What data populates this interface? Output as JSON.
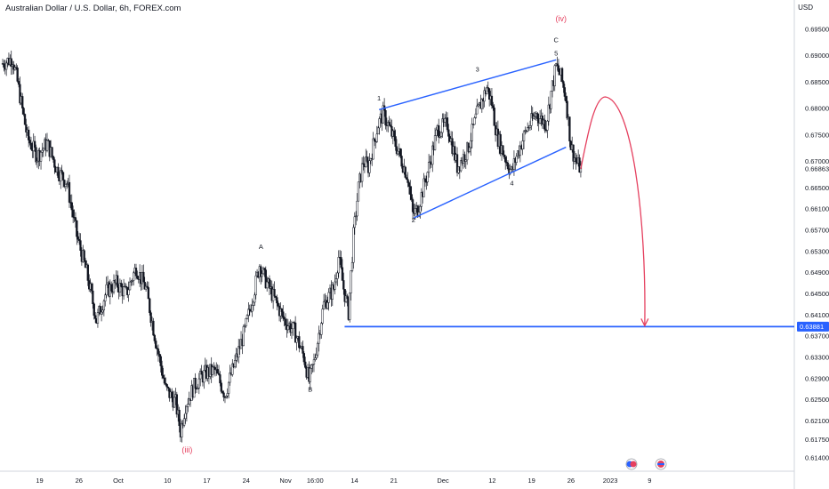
{
  "header": {
    "symbol_title": "Australian Dollar / U.S. Dollar, 6h, FOREX.com",
    "currency": "USD"
  },
  "colors": {
    "candle": "#131722",
    "trendline": "#2962ff",
    "target_line": "#2962ff",
    "projection": "#e5405f",
    "wave_label_red": "#e5405f",
    "price_badge": "#2962ff",
    "axis_border": "#d1d4dc"
  },
  "chart_data": {
    "type": "candlestick",
    "ylim": [
      0.6115,
      0.7005
    ],
    "y_ticks": [
      "0.69500",
      "0.69000",
      "0.68500",
      "0.68000",
      "0.67500",
      "0.67000",
      "0.66500",
      "0.66100",
      "0.65700",
      "0.65300",
      "0.64900",
      "0.64500",
      "0.64100",
      "0.63700",
      "0.63300",
      "0.62900",
      "0.62500",
      "0.62100",
      "0.61750",
      "0.61400"
    ],
    "y_tick_values": [
      0.695,
      0.69,
      0.685,
      0.68,
      0.675,
      0.67,
      0.665,
      0.661,
      0.657,
      0.653,
      0.649,
      0.645,
      0.641,
      0.637,
      0.633,
      0.629,
      0.625,
      0.621,
      0.6175,
      0.614
    ],
    "x_ticks": [
      "19",
      "26",
      "Oct",
      "10",
      "17",
      "24",
      "Nov",
      "16:00",
      "14",
      "21",
      "Dec",
      "12",
      "19",
      "26",
      "2023",
      "9"
    ],
    "x_tick_index": [
      7,
      15,
      23,
      33,
      41,
      49,
      57,
      63,
      71,
      79,
      89,
      99,
      107,
      115,
      123,
      131
    ],
    "last_price": 0.66863,
    "last_price_label": "0.66863",
    "target_price": 0.63881,
    "target_price_label": "0.63881",
    "path_points": [
      [
        0,
        0.6885
      ],
      [
        2,
        0.6895
      ],
      [
        3,
        0.685
      ],
      [
        5,
        0.6745
      ],
      [
        7,
        0.671
      ],
      [
        9,
        0.6735
      ],
      [
        11,
        0.6685
      ],
      [
        13,
        0.666
      ],
      [
        15,
        0.656
      ],
      [
        17,
        0.649
      ],
      [
        19,
        0.64
      ],
      [
        21,
        0.6455
      ],
      [
        23,
        0.647
      ],
      [
        25,
        0.645
      ],
      [
        27,
        0.65
      ],
      [
        29,
        0.646
      ],
      [
        31,
        0.636
      ],
      [
        33,
        0.627
      ],
      [
        35,
        0.6245
      ],
      [
        36,
        0.619
      ],
      [
        37,
        0.624
      ],
      [
        39,
        0.628
      ],
      [
        41,
        0.63
      ],
      [
        43,
        0.6305
      ],
      [
        45,
        0.626
      ],
      [
        47,
        0.632
      ],
      [
        49,
        0.638
      ],
      [
        51,
        0.646
      ],
      [
        52,
        0.6505
      ],
      [
        53,
        0.648
      ],
      [
        55,
        0.644
      ],
      [
        57,
        0.64
      ],
      [
        59,
        0.638
      ],
      [
        61,
        0.633
      ],
      [
        62,
        0.6285
      ],
      [
        63,
        0.632
      ],
      [
        65,
        0.643
      ],
      [
        67,
        0.646
      ],
      [
        68,
        0.652
      ],
      [
        69,
        0.646
      ],
      [
        70,
        0.6415
      ],
      [
        71,
        0.656
      ],
      [
        72,
        0.665
      ],
      [
        73,
        0.67
      ],
      [
        74,
        0.669
      ],
      [
        76,
        0.677
      ],
      [
        77,
        0.679
      ],
      [
        78,
        0.677
      ],
      [
        80,
        0.672
      ],
      [
        82,
        0.667
      ],
      [
        83,
        0.66
      ],
      [
        84,
        0.661
      ],
      [
        86,
        0.668
      ],
      [
        88,
        0.676
      ],
      [
        90,
        0.677
      ],
      [
        92,
        0.669
      ],
      [
        94,
        0.672
      ],
      [
        96,
        0.679
      ],
      [
        98,
        0.684
      ],
      [
        99,
        0.681
      ],
      [
        100,
        0.675
      ],
      [
        102,
        0.67
      ],
      [
        103,
        0.668
      ],
      [
        104,
        0.671
      ],
      [
        106,
        0.676
      ],
      [
        108,
        0.679
      ],
      [
        110,
        0.677
      ],
      [
        111,
        0.683
      ],
      [
        112,
        0.688
      ],
      [
        113,
        0.686
      ],
      [
        114,
        0.682
      ],
      [
        115,
        0.673
      ],
      [
        116,
        0.67
      ],
      [
        117,
        0.6686
      ]
    ],
    "bars": 118,
    "wave_labels": [
      {
        "text": "(iii)",
        "i": 37,
        "price": 0.615,
        "red": true
      },
      {
        "text": "A",
        "i": 52,
        "price": 0.6535
      },
      {
        "text": "B",
        "i": 62,
        "price": 0.6265
      },
      {
        "text": "1",
        "i": 76,
        "price": 0.6815
      },
      {
        "text": "2",
        "i": 83,
        "price": 0.6585
      },
      {
        "text": "3",
        "i": 96,
        "price": 0.687
      },
      {
        "text": "4",
        "i": 103,
        "price": 0.6655
      },
      {
        "text": "5",
        "i": 112,
        "price": 0.69
      },
      {
        "text": "C",
        "i": 112,
        "price": 0.6925
      },
      {
        "text": "(iv)",
        "i": 113,
        "price": 0.6965,
        "red": true
      }
    ],
    "upper_trendline": [
      [
        76,
        0.6798
      ],
      [
        112,
        0.6892
      ]
    ],
    "lower_trendline": [
      [
        83,
        0.6593
      ],
      [
        114,
        0.6727
      ]
    ],
    "target_line_from_i": 69,
    "projection": {
      "start": [
        117,
        0.6686
      ],
      "peak": [
        122,
        0.6822
      ],
      "end": [
        130,
        0.63881
      ]
    }
  }
}
